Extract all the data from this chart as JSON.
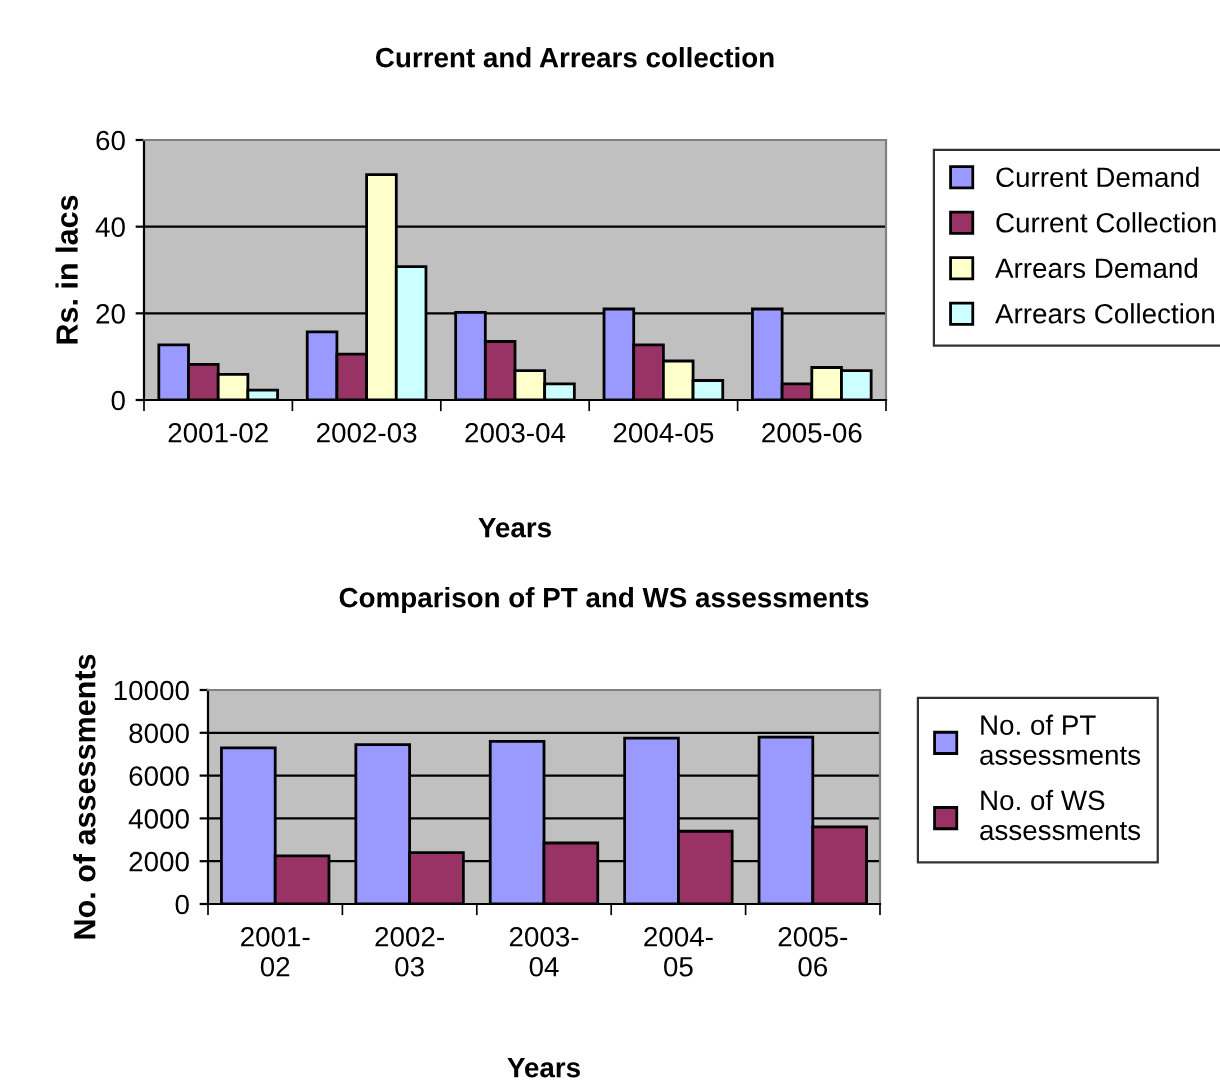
{
  "chart_data": [
    {
      "type": "bar",
      "title": "Current and Arrears collection",
      "xlabel": "Years",
      "ylabel": "Rs. in lacs",
      "categories": [
        "2001-02",
        "2002-03",
        "2003-04",
        "2004-05",
        "2005-06"
      ],
      "series": [
        {
          "name": "Current Demand",
          "color": "#9999ff",
          "values": [
            12.7,
            15.7,
            20.2,
            21,
            21
          ]
        },
        {
          "name": "Current Collection",
          "color": "#993366",
          "values": [
            8.2,
            10.6,
            13.5,
            12.7,
            3.7
          ]
        },
        {
          "name": "Arrears Demand",
          "color": "#ffffcc",
          "values": [
            5.9,
            52,
            6.8,
            9,
            7.5
          ]
        },
        {
          "name": "Arrears Collection",
          "color": "#ccffff",
          "values": [
            2.3,
            30.8,
            3.7,
            4.5,
            6.8
          ]
        }
      ],
      "ylim": [
        0,
        60
      ],
      "yticks": [
        0,
        20,
        40,
        60
      ],
      "grid": "y",
      "legend": "right"
    },
    {
      "type": "bar",
      "title": "Comparison of PT and WS assessments",
      "xlabel": "Years",
      "ylabel": "No. of assessments",
      "categories": [
        "2001-\n02",
        "2002-\n03",
        "2003-\n04",
        "2004-\n05",
        "2005-\n06"
      ],
      "series": [
        {
          "name": "No. of PT\nassessments",
          "color": "#9999ff",
          "values": [
            7300,
            7450,
            7600,
            7750,
            7800
          ]
        },
        {
          "name": "No. of WS\nassessments",
          "color": "#993366",
          "values": [
            2250,
            2400,
            2850,
            3400,
            3600
          ]
        }
      ],
      "ylim": [
        0,
        10000
      ],
      "yticks": [
        0,
        2000,
        4000,
        6000,
        8000,
        10000
      ],
      "grid": "y",
      "legend": "right"
    }
  ]
}
